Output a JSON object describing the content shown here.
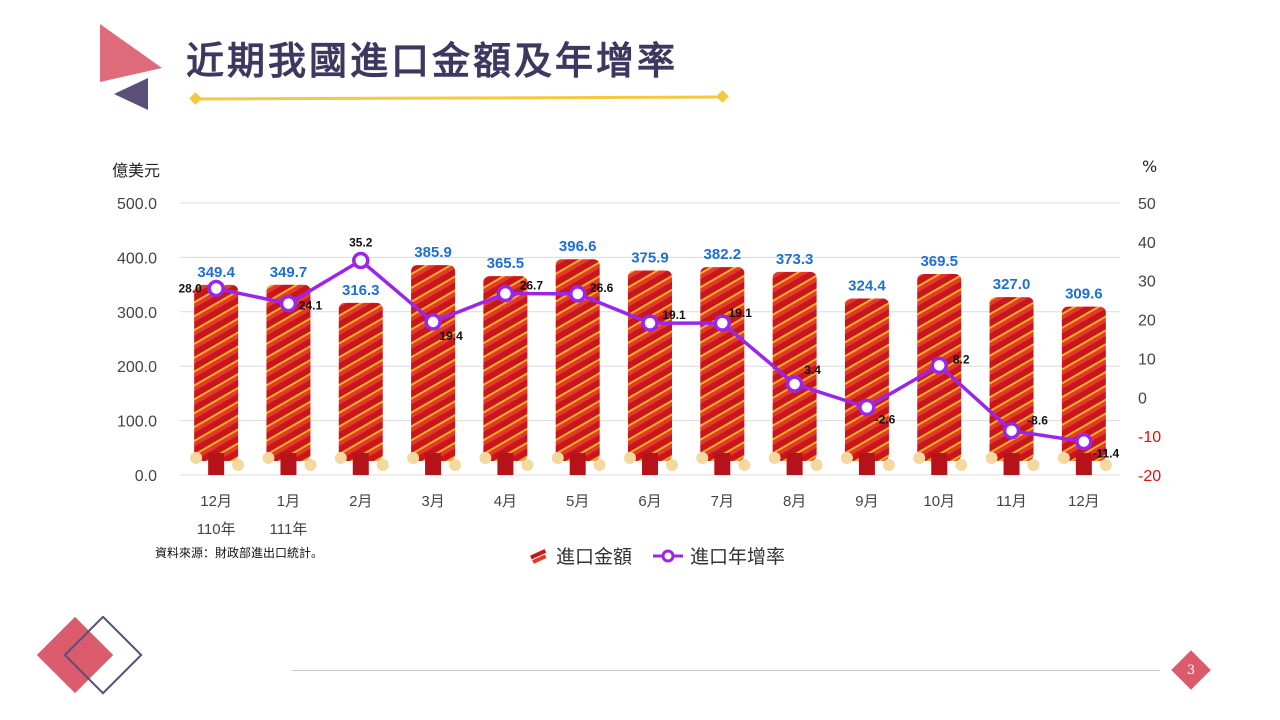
{
  "title": "近期我國進口金額及年增率",
  "page_number": "3",
  "source_note": "資料來源：財政部進出口統計。",
  "unit_left": "億美元",
  "unit_right": "%",
  "legend": {
    "bar": "進口金額",
    "line": "進口年增率"
  },
  "colors": {
    "title": "#3d3860",
    "bar_label": "#1f6fd1",
    "line": "#9b26ea",
    "negative_tick": "#e01010",
    "accent_red": "#d95b6c",
    "accent_gold": "#f5c842",
    "accent_purple": "#5a4f7a"
  },
  "chart_data": {
    "type": "bar",
    "categories": [
      "12月",
      "1月",
      "2月",
      "3月",
      "4月",
      "5月",
      "6月",
      "7月",
      "8月",
      "9月",
      "10月",
      "11月",
      "12月"
    ],
    "year_labels": [
      "110年",
      "111年",
      "",
      "",
      "",
      "",
      "",
      "",
      "",
      "",
      "",
      "",
      ""
    ],
    "series": [
      {
        "name": "進口金額",
        "type": "bar",
        "axis": "left",
        "values": [
          349.4,
          349.7,
          316.3,
          385.9,
          365.5,
          396.6,
          375.9,
          382.2,
          373.3,
          324.4,
          369.5,
          327.0,
          309.6
        ],
        "labels": [
          "349.4",
          "349.7",
          "316.3",
          "385.9",
          "365.5",
          "396.6",
          "375.9",
          "382.2",
          "373.3",
          "324.4",
          "369.5",
          "327.0",
          "309.6"
        ]
      },
      {
        "name": "進口年增率",
        "type": "line",
        "axis": "right",
        "values": [
          28.0,
          24.1,
          35.2,
          19.4,
          26.7,
          26.6,
          19.1,
          19.1,
          3.4,
          -2.6,
          8.2,
          -8.6,
          -11.4
        ],
        "labels": [
          "28.0",
          "24.1",
          "35.2",
          "19.4",
          "26.7",
          "26.6",
          "19.1",
          "19.1",
          "3.4",
          "-2.6",
          "8.2",
          "-8.6",
          "-11.4"
        ]
      }
    ],
    "y_left": {
      "range": [
        0,
        500
      ],
      "ticks": [
        "0.0",
        "100.0",
        "200.0",
        "300.0",
        "400.0",
        "500.0"
      ]
    },
    "y_right": {
      "range": [
        -20,
        50
      ],
      "ticks": [
        "-20",
        "-10",
        "0",
        "10",
        "20",
        "30",
        "40",
        "50"
      ]
    },
    "grid": true,
    "legend_position": "bottom"
  }
}
